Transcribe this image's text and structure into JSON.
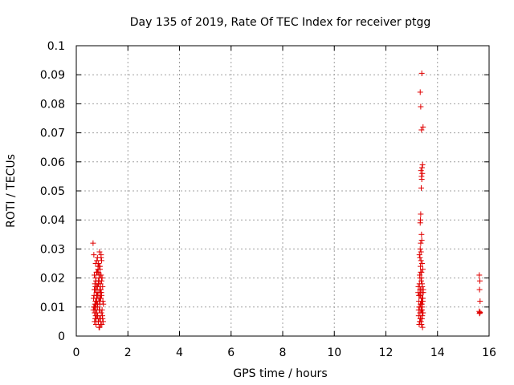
{
  "chart_data": {
    "type": "scatter",
    "title": "Day 135 of 2019, Rate Of TEC Index for receiver ptgg",
    "xlabel": "GPS time / hours",
    "ylabel": "ROTI / TECUs",
    "xlim": [
      0,
      16
    ],
    "ylim": [
      0,
      0.1
    ],
    "xticks": [
      "0",
      "2",
      "4",
      "6",
      "8",
      "10",
      "12",
      "14",
      "16"
    ],
    "yticks": [
      "0",
      "0.01",
      "0.02",
      "0.03",
      "0.04",
      "0.05",
      "0.06",
      "0.07",
      "0.08",
      "0.09",
      "0.1"
    ],
    "grid": true,
    "marker": "+",
    "color": "#e00000",
    "series": [
      {
        "x": [
          0.65,
          0.68,
          0.7,
          0.72,
          0.75,
          0.78,
          0.8,
          0.82,
          0.85,
          0.88,
          0.9,
          0.92,
          0.95,
          0.98,
          1.0,
          1.02,
          1.05,
          0.66,
          0.69,
          0.71,
          0.74,
          0.77,
          0.79,
          0.83,
          0.86,
          0.89,
          0.91,
          0.94,
          0.97,
          0.99,
          1.01,
          1.04,
          0.67,
          0.73,
          0.76,
          0.81,
          0.84,
          0.87,
          0.93,
          0.96,
          1.03,
          0.7,
          0.8,
          0.9,
          1.0,
          0.75,
          0.85,
          0.95,
          0.72,
          0.78,
          0.82,
          0.88,
          0.92,
          0.98,
          0.74,
          0.84,
          0.94,
          0.68,
          0.86,
          0.96,
          0.76,
          0.9,
          1.02,
          0.7,
          0.8,
          0.9,
          0.75,
          0.85,
          0.95,
          0.72,
          0.82,
          0.92,
          0.78,
          0.88,
          0.98,
          0.73,
          0.83,
          0.93,
          0.79,
          0.89,
          0.71,
          0.81,
          0.91,
          0.77,
          0.87,
          0.97,
          0.74,
          0.86,
          0.96,
          0.8,
          0.9,
          0.84,
          0.94,
          0.76,
          0.88,
          0.82,
          0.92,
          13.25,
          13.28,
          13.3,
          13.32,
          13.35,
          13.38,
          13.4,
          13.42,
          13.45,
          13.27,
          13.31,
          13.34,
          13.37,
          13.41,
          13.44,
          13.26,
          13.29,
          13.33,
          13.36,
          13.39,
          13.43,
          13.3,
          13.35,
          13.4,
          13.32,
          13.38,
          13.28,
          13.42,
          13.34,
          13.36,
          13.3,
          13.33,
          13.37,
          13.41,
          13.29,
          13.35,
          13.39,
          13.31,
          13.43,
          13.27,
          13.36,
          13.4,
          13.32,
          13.38,
          13.34,
          13.35,
          13.33,
          13.37,
          13.39,
          13.41,
          13.38,
          13.36,
          13.4,
          13.42,
          13.38,
          13.44,
          13.35,
          13.33,
          13.39,
          13.41,
          13.36,
          13.38,
          13.4,
          13.42,
          13.41,
          13.43,
          13.45,
          13.4,
          13.38,
          13.35,
          13.32,
          13.3,
          13.34,
          13.37,
          13.39,
          15.62,
          15.64,
          15.63,
          15.65,
          15.62,
          15.64,
          15.63,
          15.65
        ],
        "y": [
          0.032,
          0.028,
          0.021,
          0.018,
          0.025,
          0.015,
          0.012,
          0.027,
          0.022,
          0.019,
          0.016,
          0.024,
          0.013,
          0.026,
          0.02,
          0.017,
          0.011,
          0.009,
          0.014,
          0.008,
          0.01,
          0.006,
          0.012,
          0.007,
          0.005,
          0.009,
          0.011,
          0.006,
          0.008,
          0.004,
          0.007,
          0.005,
          0.013,
          0.016,
          0.019,
          0.022,
          0.024,
          0.018,
          0.015,
          0.021,
          0.012,
          0.01,
          0.008,
          0.006,
          0.009,
          0.007,
          0.005,
          0.004,
          0.011,
          0.013,
          0.017,
          0.02,
          0.023,
          0.014,
          0.012,
          0.015,
          0.018,
          0.01,
          0.025,
          0.027,
          0.009,
          0.003,
          0.006,
          0.016,
          0.014,
          0.012,
          0.02,
          0.018,
          0.016,
          0.008,
          0.01,
          0.013,
          0.022,
          0.024,
          0.019,
          0.006,
          0.011,
          0.015,
          0.017,
          0.021,
          0.005,
          0.007,
          0.009,
          0.011,
          0.013,
          0.015,
          0.017,
          0.019,
          0.028,
          0.026,
          0.029,
          0.023,
          0.021,
          0.004,
          0.003,
          0.014,
          0.012,
          0.015,
          0.012,
          0.01,
          0.008,
          0.006,
          0.011,
          0.009,
          0.013,
          0.016,
          0.007,
          0.005,
          0.014,
          0.012,
          0.01,
          0.008,
          0.017,
          0.004,
          0.006,
          0.009,
          0.011,
          0.013,
          0.018,
          0.016,
          0.015,
          0.02,
          0.022,
          0.014,
          0.012,
          0.024,
          0.026,
          0.028,
          0.03,
          0.019,
          0.017,
          0.01,
          0.032,
          0.033,
          0.021,
          0.023,
          0.009,
          0.029,
          0.025,
          0.027,
          0.035,
          0.04,
          0.042,
          0.039,
          0.051,
          0.054,
          0.056,
          0.055,
          0.057,
          0.058,
          0.059,
          0.071,
          0.072,
          0.079,
          0.084,
          0.0905,
          0.007,
          0.005,
          0.004,
          0.006,
          0.003,
          0.008,
          0.012,
          0.015,
          0.018,
          0.02,
          0.022,
          0.016,
          0.014,
          0.011,
          0.009,
          0.013,
          0.021,
          0.019,
          0.016,
          0.012,
          0.0085,
          0.008,
          0.0078,
          0.0082
        ]
      }
    ]
  }
}
